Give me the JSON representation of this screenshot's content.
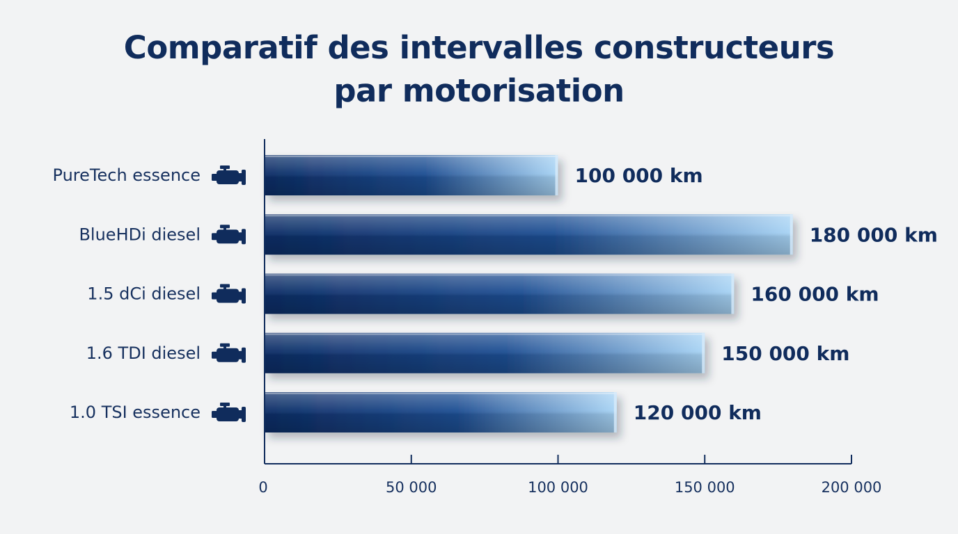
{
  "title_line1": "Comparatif des intervalles constructeurs",
  "title_line2": "par motorisation",
  "colors": {
    "axis": "#102c5c",
    "bar_dark": "#0d2d66",
    "bar_light": "#a8d4f5",
    "text": "#102c5c"
  },
  "chart_data": {
    "type": "bar",
    "orientation": "horizontal",
    "categories": [
      "PureTech essence",
      "BlueHDi diesel",
      "1.5 dCi diesel",
      "1.6 TDI diesel",
      "1.0 TSI essence"
    ],
    "values": [
      100000,
      180000,
      160000,
      150000,
      120000
    ],
    "value_labels": [
      "100 000 km",
      "180 000 km",
      "160 000 km",
      "150 000 km",
      "120 000 km"
    ],
    "category_icon": "engine-icon",
    "xlim": [
      0,
      200000
    ],
    "xticks": [
      0,
      50000,
      100000,
      150000,
      200000
    ],
    "xtick_labels": [
      "0",
      "50 000",
      "100 000",
      "150 000",
      "200 000"
    ],
    "grid": false,
    "legend": "none"
  }
}
